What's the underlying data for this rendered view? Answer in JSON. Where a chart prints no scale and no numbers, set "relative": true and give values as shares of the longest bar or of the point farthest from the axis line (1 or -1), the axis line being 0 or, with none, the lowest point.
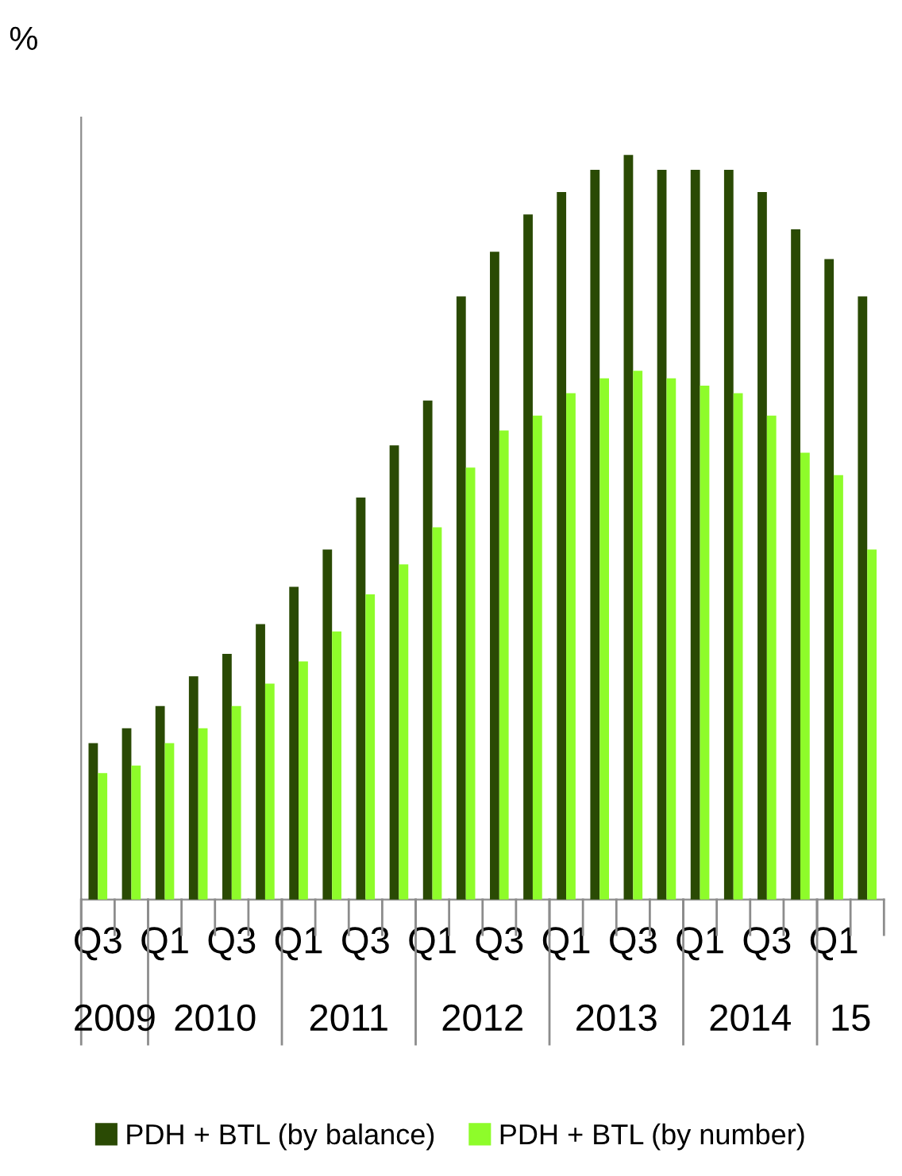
{
  "chart_data": {
    "type": "bar",
    "relative": true,
    "ylabel": "%",
    "categories": [
      "Q3",
      null,
      "Q1",
      null,
      "Q3",
      null,
      "Q1",
      null,
      "Q3",
      null,
      "Q1",
      null,
      "Q3",
      null,
      "Q1",
      null,
      "Q3",
      null,
      "Q1",
      null,
      "Q3",
      null,
      "Q1",
      null
    ],
    "series": [
      {
        "name": "PDH + BTL (by balance)",
        "color": "#2a4a04",
        "values": [
          0.21,
          0.23,
          0.26,
          0.3,
          0.33,
          0.37,
          0.42,
          0.47,
          0.54,
          0.61,
          0.67,
          0.81,
          0.87,
          0.92,
          0.95,
          0.98,
          1.0,
          0.98,
          0.98,
          0.98,
          0.95,
          0.9,
          0.86,
          0.81
        ]
      },
      {
        "name": "PDH + BTL (by number)",
        "color": "#8efc2a",
        "values": [
          0.17,
          0.18,
          0.21,
          0.23,
          0.26,
          0.29,
          0.32,
          0.36,
          0.41,
          0.45,
          0.5,
          0.58,
          0.63,
          0.65,
          0.68,
          0.7,
          0.71,
          0.7,
          0.69,
          0.68,
          0.65,
          0.6,
          0.57,
          0.47
        ]
      }
    ],
    "annotations": [
      "2009",
      "2010",
      "2011",
      "2012",
      "2013",
      "2014",
      "15"
    ],
    "legend": "bottom"
  }
}
